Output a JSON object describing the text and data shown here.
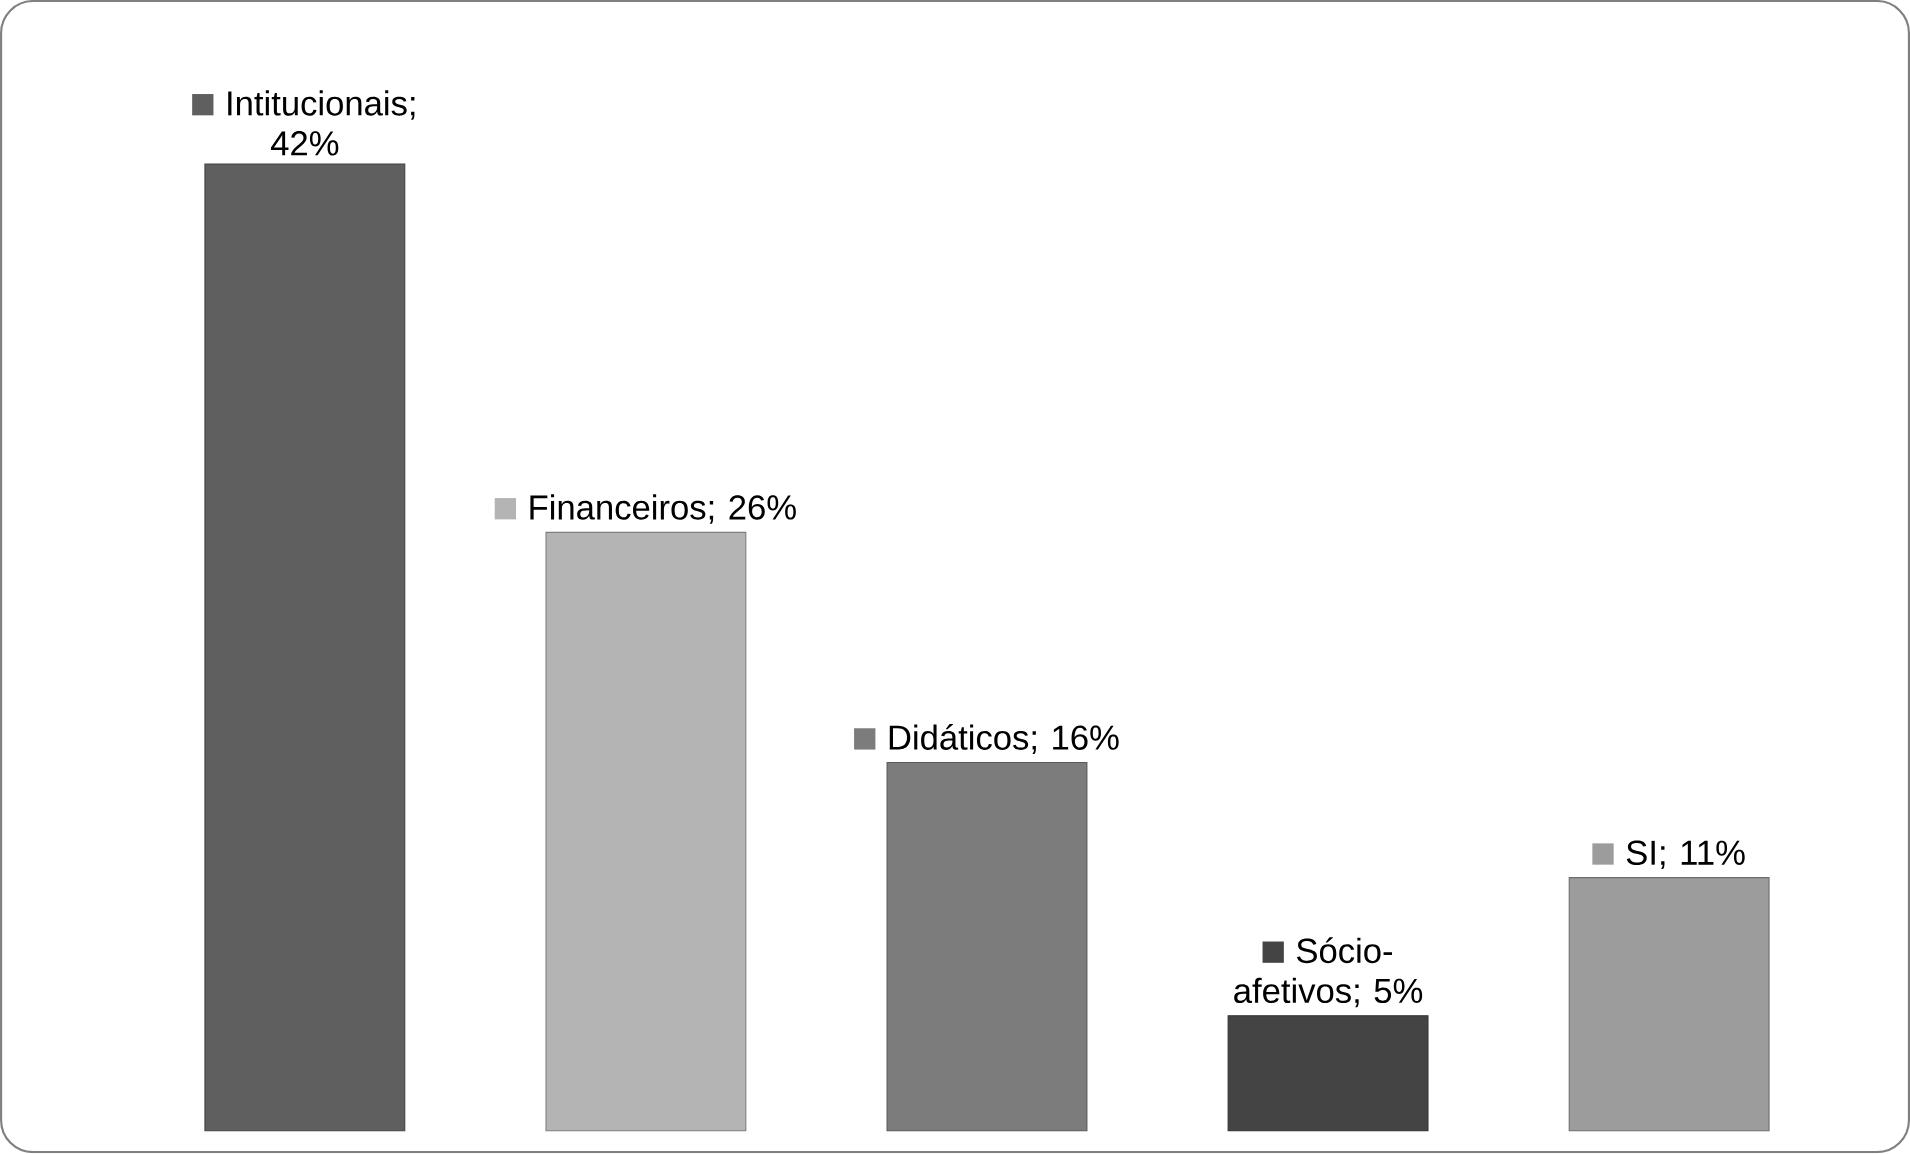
{
  "chart_data": {
    "type": "bar",
    "categories": [
      null,
      null,
      null,
      null,
      null
    ],
    "values": [
      42,
      26,
      16,
      5,
      11
    ],
    "colors": [
      "#5f5f5f",
      "#b4b4b4",
      "#7c7c7c",
      "#444444",
      "#9c9c9c"
    ],
    "value_labels": [
      "Intitucionais; 42%",
      "Financeiros; 26%",
      "Didáticos; 16%",
      "Sócio-afetivos; 5%",
      "SI; 11%"
    ]
  }
}
